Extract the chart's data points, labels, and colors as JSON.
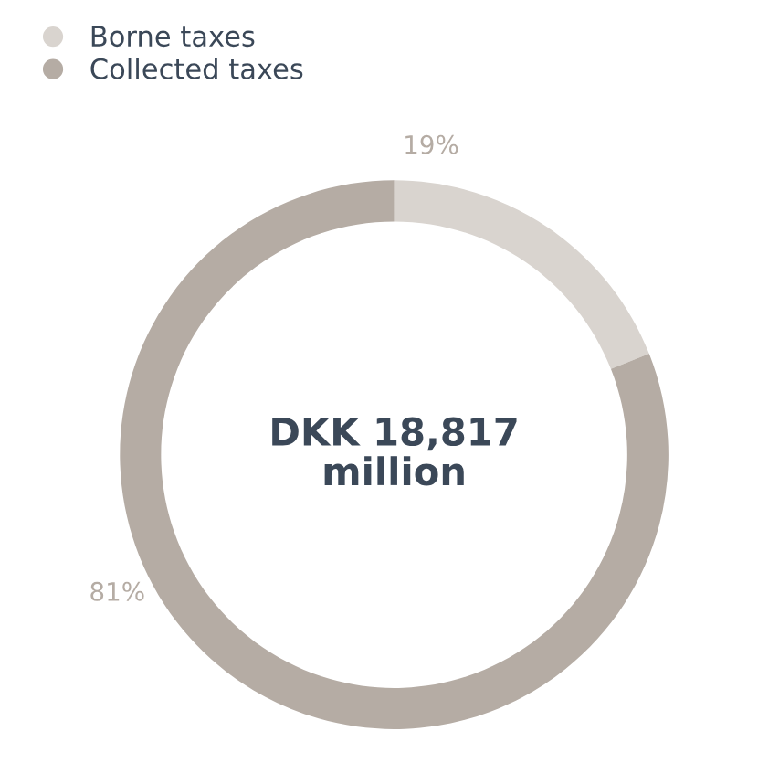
{
  "chart_data": {
    "type": "donut",
    "categories": [
      "Borne taxes",
      "Collected taxes"
    ],
    "values": [
      19,
      81
    ],
    "colors": [
      "#d9d4cf",
      "#b5aca4"
    ],
    "value_labels": [
      "19%",
      "81%"
    ],
    "annotations": [
      "DKK 18,817\nmillion"
    ],
    "legend": "top left"
  }
}
